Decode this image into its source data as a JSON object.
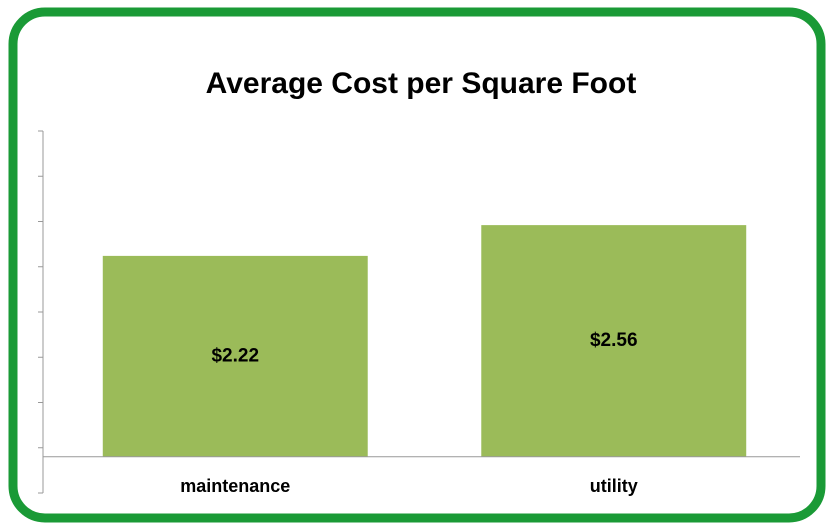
{
  "chart_data": {
    "type": "bar",
    "title": "Average Cost per Square Foot",
    "categories": [
      "maintenance",
      "utility"
    ],
    "values": [
      2.22,
      2.56
    ],
    "value_labels": [
      "$2.22",
      "$2.56"
    ],
    "color": "#9bbb59",
    "ylim": [
      -0.4,
      3.6
    ],
    "yticks": [
      -0.4,
      0.1,
      0.6,
      1.1,
      1.6,
      2.1,
      2.6,
      3.1,
      3.6
    ]
  }
}
